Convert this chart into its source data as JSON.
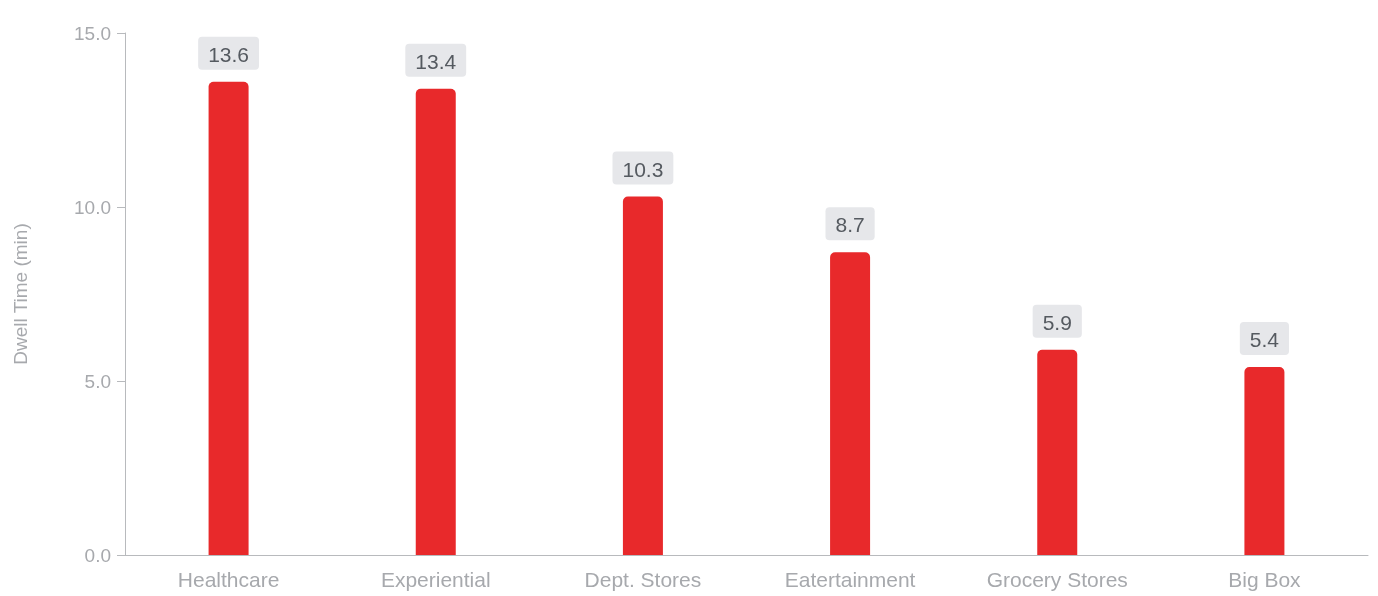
{
  "chart_data": {
    "type": "bar",
    "ylabel": "Dwell Time (min)",
    "categories": [
      "Healthcare",
      "Experiential",
      "Dept. Stores",
      "Eatertainment",
      "Grocery Stores",
      "Big Box"
    ],
    "values": [
      13.6,
      13.4,
      10.3,
      8.7,
      5.9,
      5.4
    ],
    "color": "#e8292b",
    "ylim": [
      0,
      15
    ],
    "yticks": [
      {
        "value": 0,
        "label": "0.0"
      },
      {
        "value": 5,
        "label": "5.0"
      },
      {
        "value": 10,
        "label": "10.0"
      },
      {
        "value": 15,
        "label": "15.0"
      }
    ],
    "data_labels": true,
    "grid": false
  }
}
